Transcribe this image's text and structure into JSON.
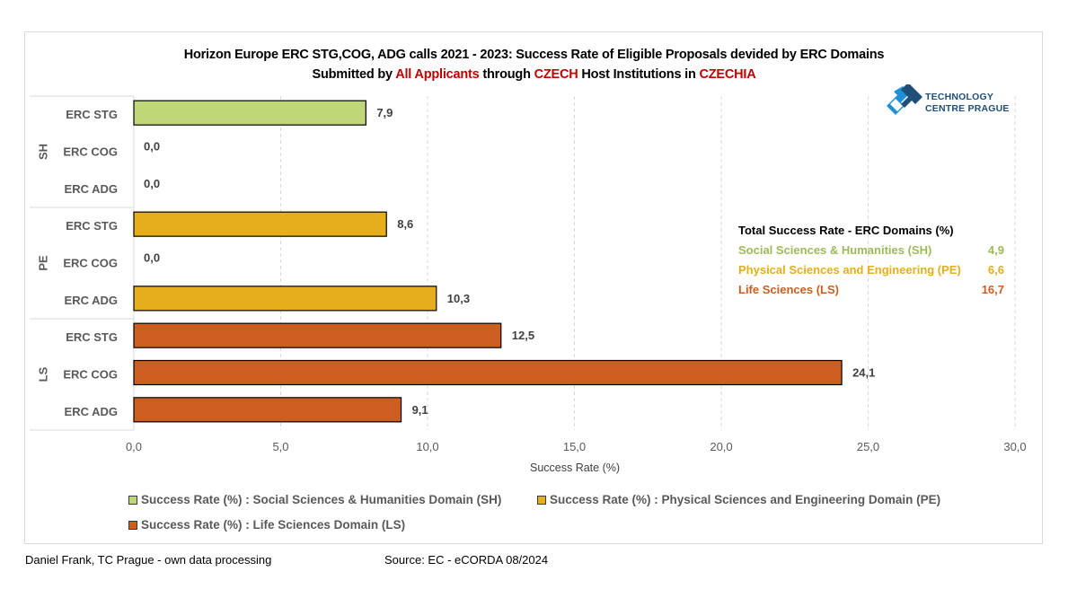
{
  "title": {
    "line1": "Horizon Europe ERC STG,COG, ADG calls 2021 - 2023: Success Rate of Eligible Proposals devided by ERC Domains",
    "line2_parts": [
      {
        "text": "Submitted by ",
        "color": "#000000"
      },
      {
        "text": "All Applicants",
        "color": "#c00000"
      },
      {
        "text": " through ",
        "color": "#000000"
      },
      {
        "text": "CZECH",
        "color": "#c00000"
      },
      {
        "text": " Host Institutions in ",
        "color": "#000000"
      },
      {
        "text": "CZECHIA",
        "color": "#c00000"
      }
    ]
  },
  "logo": {
    "line1": "TECHNOLOGY",
    "line2": "CENTRE PRAGUE",
    "colors": {
      "dark": "#1f4e79",
      "light": "#1f8fd6"
    }
  },
  "summary": {
    "header": "Total Success Rate - ERC Domains (%)",
    "rows": [
      {
        "label": "Social Sciences & Humanities (SH)",
        "value": "4,9",
        "color": "#9bbb59"
      },
      {
        "label": "Physical Sciences and Engineering (PE)",
        "value": "6,6",
        "color": "#e6ae1a"
      },
      {
        "label": "Life Sciences (LS)",
        "value": "16,7",
        "color": "#cc5e1f"
      }
    ]
  },
  "chart_data": {
    "type": "bar",
    "orientation": "horizontal",
    "title": "Horizon Europe ERC STG,COG, ADG calls 2021 - 2023: Success Rate of Eligible Proposals devided by ERC Domains",
    "xlabel": "Success Rate (%)",
    "ylabel": "",
    "xlim": [
      0,
      30
    ],
    "xticks": [
      0,
      5,
      10,
      15,
      20,
      25,
      30
    ],
    "xtick_labels": [
      "0,0",
      "5,0",
      "10,0",
      "15,0",
      "20,0",
      "25,0",
      "30,0"
    ],
    "grid": "vertical dashed",
    "groups": [
      {
        "name": "SH",
        "color": "#c0d67a",
        "categories": [
          "ERC STG",
          "ERC COG",
          "ERC ADG"
        ],
        "values": [
          7.9,
          0.0,
          0.0
        ],
        "labels": [
          "7,9",
          "0,0",
          "0,0"
        ]
      },
      {
        "name": "PE",
        "color": "#e6ae1a",
        "categories": [
          "ERC STG",
          "ERC COG",
          "ERC ADG"
        ],
        "values": [
          8.6,
          0.0,
          10.3
        ],
        "labels": [
          "8,6",
          "0,0",
          "10,3"
        ]
      },
      {
        "name": "LS",
        "color": "#cc5e1f",
        "categories": [
          "ERC STG",
          "ERC COG",
          "ERC ADG"
        ],
        "values": [
          12.5,
          24.1,
          9.1
        ],
        "labels": [
          "12,5",
          "24,1",
          "9,1"
        ]
      }
    ],
    "legend": {
      "placement": "bottom",
      "entries": [
        {
          "label": "Success Rate (%) : Social Sciences & Humanities Domain (SH)",
          "color": "#c0d67a"
        },
        {
          "label": "Success Rate (%) :  Physical Sciences and Engineering Domain (PE)",
          "color": "#e6ae1a"
        },
        {
          "label": "Success Rate (%) : Life Sciences Domain (LS)",
          "color": "#cc5e1f"
        }
      ]
    }
  },
  "footer": {
    "author": "Daniel Frank, TC Prague - own data processing",
    "source": "Source: EC - eCORDA 08/2024"
  }
}
